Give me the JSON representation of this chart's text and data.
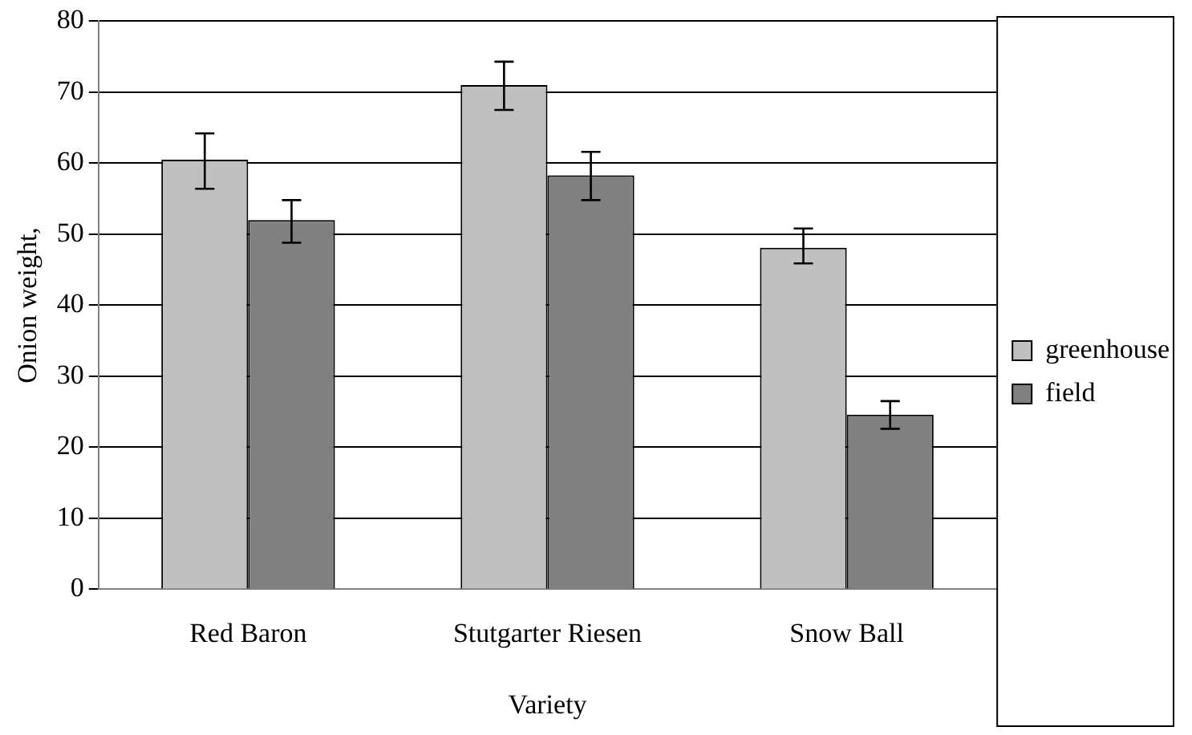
{
  "chart_data": {
    "type": "bar",
    "xlabel": "Variety",
    "ylabel": "Onion weight,",
    "categories": [
      "Red Baron",
      "Stutgarter Riesen",
      "Snow Ball"
    ],
    "series": [
      {
        "name": "greenhouse",
        "color": "#c0c0c0",
        "values": [
          60.5,
          71.0,
          48.1
        ],
        "errors": [
          [
            56.4,
            64.2
          ],
          [
            67.5,
            74.3
          ],
          [
            45.9,
            50.8
          ]
        ]
      },
      {
        "name": "field",
        "color": "#808080",
        "values": [
          52.0,
          58.3,
          24.6
        ],
        "errors": [
          [
            48.8,
            54.8
          ],
          [
            54.8,
            61.6
          ],
          [
            22.6,
            26.5
          ]
        ]
      }
    ],
    "ylim": [
      0,
      80
    ],
    "yticks": [
      0,
      10,
      20,
      30,
      40,
      50,
      60,
      70,
      80
    ],
    "grid": "y",
    "legend": "right"
  }
}
